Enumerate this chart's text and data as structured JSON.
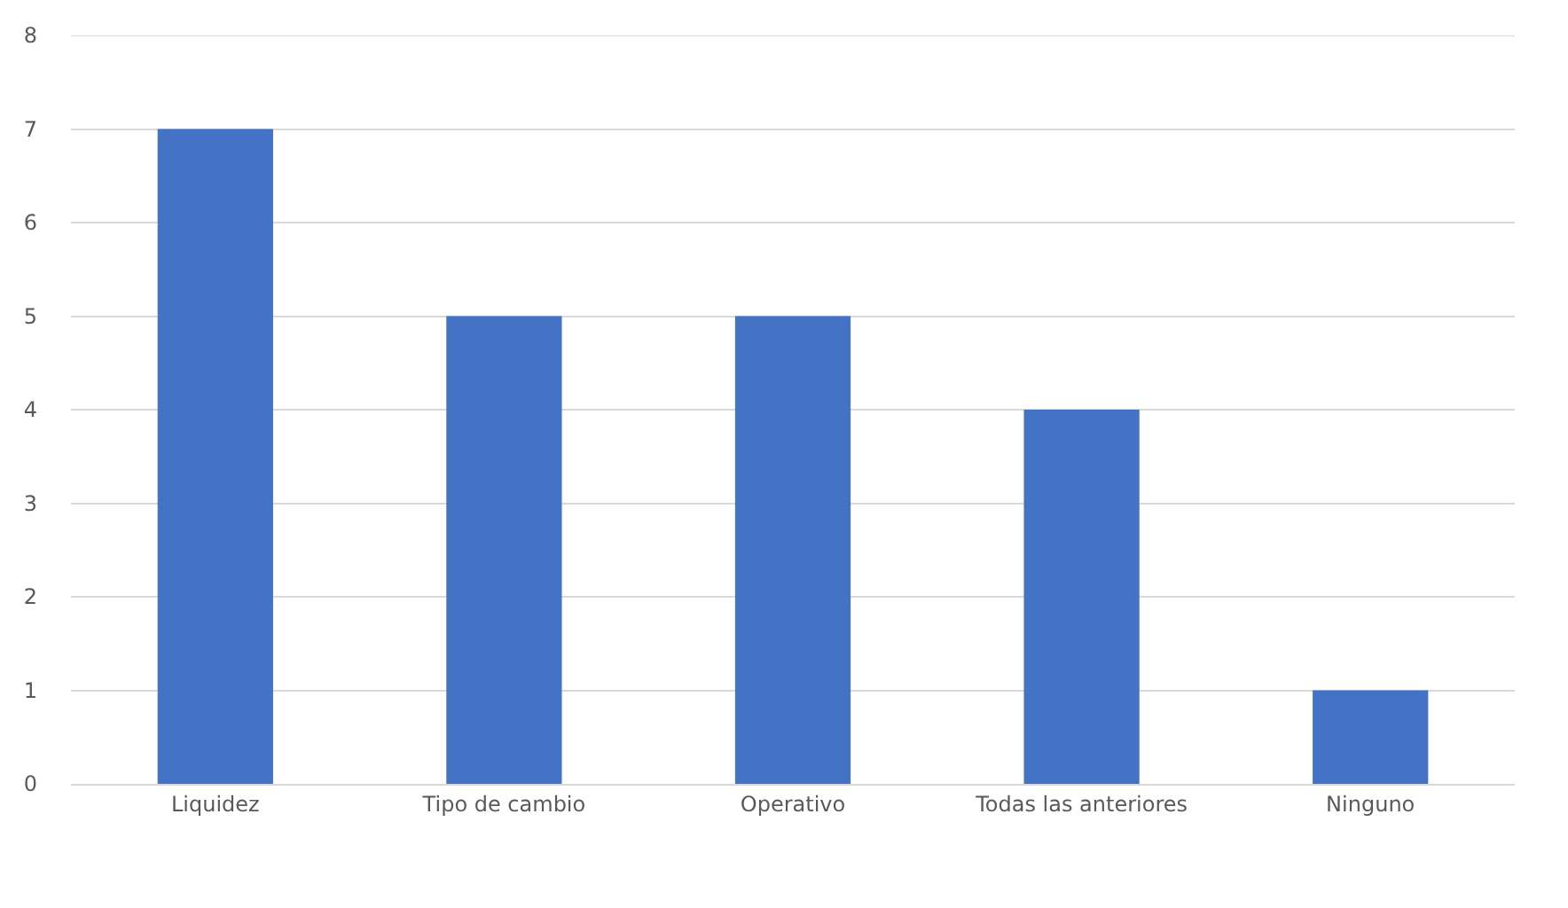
{
  "chart_data": {
    "type": "bar",
    "categories": [
      "Liquidez",
      "Tipo de cambio",
      "Operativo",
      "Todas las anteriores",
      "Ninguno"
    ],
    "values": [
      7,
      5,
      5,
      4,
      1
    ],
    "color": "#4472c4",
    "ylim": [
      0,
      8
    ],
    "yticks": [
      0,
      1,
      2,
      3,
      4,
      5,
      6,
      7,
      8
    ],
    "grid": "y"
  }
}
